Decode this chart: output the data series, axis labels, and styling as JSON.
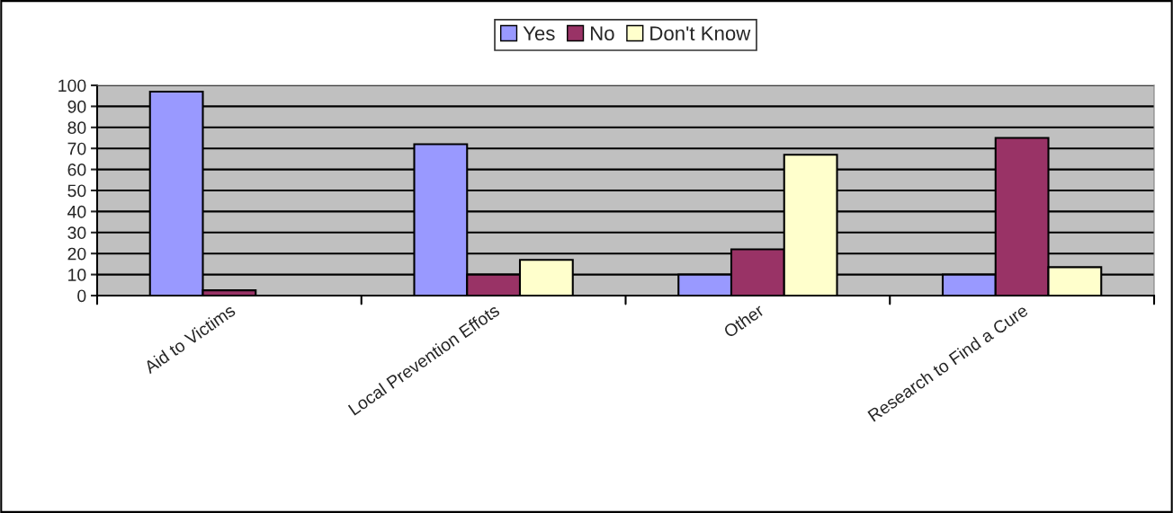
{
  "chart_data": {
    "type": "bar",
    "categories": [
      "Aid to Victims",
      "Local Prevention Effots",
      "Other",
      "Research to Find a Cure"
    ],
    "series": [
      {
        "name": "Yes",
        "color": "#9999ff",
        "values": [
          97,
          72,
          10,
          10
        ]
      },
      {
        "name": "No",
        "color": "#993366",
        "values": [
          2.5,
          10,
          22,
          75
        ]
      },
      {
        "name": "Don't Know",
        "color": "#ffffcc",
        "values": [
          null,
          17,
          67,
          13.5
        ]
      }
    ],
    "ylim": [
      0,
      100
    ],
    "yticks": [
      0,
      10,
      20,
      30,
      40,
      50,
      60,
      70,
      80,
      90,
      100
    ],
    "grid": "y",
    "legend": "top"
  }
}
